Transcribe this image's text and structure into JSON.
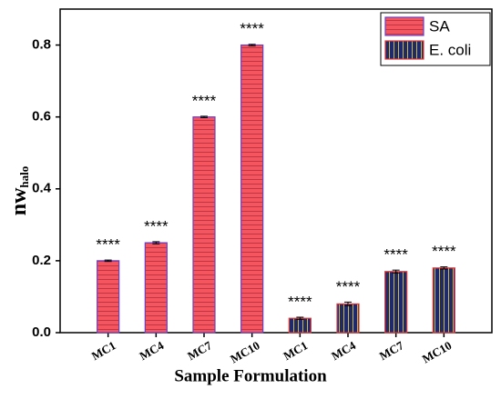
{
  "chart_data": {
    "type": "bar",
    "xlabel": "Sample Formulation",
    "ylabel": "nw",
    "ylabel_subscript": "halo",
    "categories": [
      "MC1",
      "MC4",
      "MC7",
      "MC10",
      "MC1",
      "MC4",
      "MC7",
      "MC10"
    ],
    "series": [
      {
        "name": "SA",
        "color": "#f4555f",
        "hatch": "horizontal",
        "hatch_color": "#b8323f",
        "edgecolor": "#6b3fc0",
        "values": [
          0.2,
          0.25,
          0.6,
          0.8,
          null,
          null,
          null,
          null
        ],
        "errors": [
          0.002,
          0.003,
          0.002,
          0.002,
          null,
          null,
          null,
          null
        ]
      },
      {
        "name": "E. coli",
        "color": "#1f2a6b",
        "hatch": "vertical",
        "hatch_color": "#c9b84e",
        "edgecolor": "#e0383a",
        "values": [
          null,
          null,
          null,
          null,
          0.04,
          0.08,
          0.17,
          0.18
        ],
        "errors": [
          null,
          null,
          null,
          null,
          0.003,
          0.005,
          0.004,
          0.003
        ]
      }
    ],
    "annotations": [
      "****",
      "****",
      "****",
      "****",
      "****",
      "****",
      "****",
      "****"
    ],
    "ylim": [
      0,
      0.9
    ],
    "yticks": [
      {
        "value": 0,
        "label": "0.0"
      },
      0.2,
      0.4,
      0.6,
      0.8
    ],
    "grid": false,
    "legend": "upper right"
  }
}
